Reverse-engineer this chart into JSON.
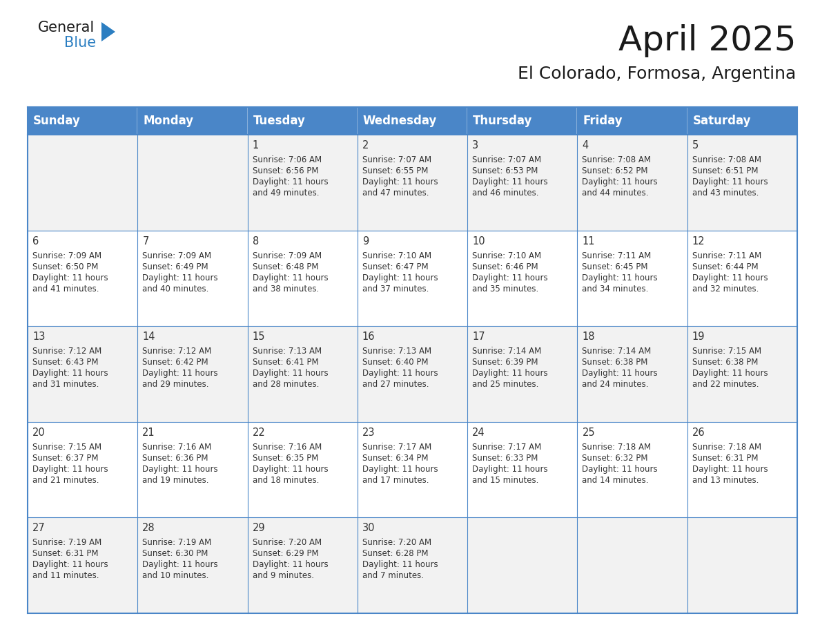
{
  "title": "April 2025",
  "subtitle": "El Colorado, Formosa, Argentina",
  "header_color": "#4a86c8",
  "header_text_color": "#ffffff",
  "cell_bg_even": "#f2f2f2",
  "cell_bg_odd": "#ffffff",
  "border_color": "#4a86c8",
  "border_color_light": "#a0b8d8",
  "day_names": [
    "Sunday",
    "Monday",
    "Tuesday",
    "Wednesday",
    "Thursday",
    "Friday",
    "Saturday"
  ],
  "weeks": [
    [
      {
        "day": "",
        "sunrise": "",
        "sunset": "",
        "daylight_h": "",
        "daylight_m": ""
      },
      {
        "day": "",
        "sunrise": "",
        "sunset": "",
        "daylight_h": "",
        "daylight_m": ""
      },
      {
        "day": "1",
        "sunrise": "7:06 AM",
        "sunset": "6:56 PM",
        "daylight_h": "11 hours",
        "daylight_m": "and 49 minutes."
      },
      {
        "day": "2",
        "sunrise": "7:07 AM",
        "sunset": "6:55 PM",
        "daylight_h": "11 hours",
        "daylight_m": "and 47 minutes."
      },
      {
        "day": "3",
        "sunrise": "7:07 AM",
        "sunset": "6:53 PM",
        "daylight_h": "11 hours",
        "daylight_m": "and 46 minutes."
      },
      {
        "day": "4",
        "sunrise": "7:08 AM",
        "sunset": "6:52 PM",
        "daylight_h": "11 hours",
        "daylight_m": "and 44 minutes."
      },
      {
        "day": "5",
        "sunrise": "7:08 AM",
        "sunset": "6:51 PM",
        "daylight_h": "11 hours",
        "daylight_m": "and 43 minutes."
      }
    ],
    [
      {
        "day": "6",
        "sunrise": "7:09 AM",
        "sunset": "6:50 PM",
        "daylight_h": "11 hours",
        "daylight_m": "and 41 minutes."
      },
      {
        "day": "7",
        "sunrise": "7:09 AM",
        "sunset": "6:49 PM",
        "daylight_h": "11 hours",
        "daylight_m": "and 40 minutes."
      },
      {
        "day": "8",
        "sunrise": "7:09 AM",
        "sunset": "6:48 PM",
        "daylight_h": "11 hours",
        "daylight_m": "and 38 minutes."
      },
      {
        "day": "9",
        "sunrise": "7:10 AM",
        "sunset": "6:47 PM",
        "daylight_h": "11 hours",
        "daylight_m": "and 37 minutes."
      },
      {
        "day": "10",
        "sunrise": "7:10 AM",
        "sunset": "6:46 PM",
        "daylight_h": "11 hours",
        "daylight_m": "and 35 minutes."
      },
      {
        "day": "11",
        "sunrise": "7:11 AM",
        "sunset": "6:45 PM",
        "daylight_h": "11 hours",
        "daylight_m": "and 34 minutes."
      },
      {
        "day": "12",
        "sunrise": "7:11 AM",
        "sunset": "6:44 PM",
        "daylight_h": "11 hours",
        "daylight_m": "and 32 minutes."
      }
    ],
    [
      {
        "day": "13",
        "sunrise": "7:12 AM",
        "sunset": "6:43 PM",
        "daylight_h": "11 hours",
        "daylight_m": "and 31 minutes."
      },
      {
        "day": "14",
        "sunrise": "7:12 AM",
        "sunset": "6:42 PM",
        "daylight_h": "11 hours",
        "daylight_m": "and 29 minutes."
      },
      {
        "day": "15",
        "sunrise": "7:13 AM",
        "sunset": "6:41 PM",
        "daylight_h": "11 hours",
        "daylight_m": "and 28 minutes."
      },
      {
        "day": "16",
        "sunrise": "7:13 AM",
        "sunset": "6:40 PM",
        "daylight_h": "11 hours",
        "daylight_m": "and 27 minutes."
      },
      {
        "day": "17",
        "sunrise": "7:14 AM",
        "sunset": "6:39 PM",
        "daylight_h": "11 hours",
        "daylight_m": "and 25 minutes."
      },
      {
        "day": "18",
        "sunrise": "7:14 AM",
        "sunset": "6:38 PM",
        "daylight_h": "11 hours",
        "daylight_m": "and 24 minutes."
      },
      {
        "day": "19",
        "sunrise": "7:15 AM",
        "sunset": "6:38 PM",
        "daylight_h": "11 hours",
        "daylight_m": "and 22 minutes."
      }
    ],
    [
      {
        "day": "20",
        "sunrise": "7:15 AM",
        "sunset": "6:37 PM",
        "daylight_h": "11 hours",
        "daylight_m": "and 21 minutes."
      },
      {
        "day": "21",
        "sunrise": "7:16 AM",
        "sunset": "6:36 PM",
        "daylight_h": "11 hours",
        "daylight_m": "and 19 minutes."
      },
      {
        "day": "22",
        "sunrise": "7:16 AM",
        "sunset": "6:35 PM",
        "daylight_h": "11 hours",
        "daylight_m": "and 18 minutes."
      },
      {
        "day": "23",
        "sunrise": "7:17 AM",
        "sunset": "6:34 PM",
        "daylight_h": "11 hours",
        "daylight_m": "and 17 minutes."
      },
      {
        "day": "24",
        "sunrise": "7:17 AM",
        "sunset": "6:33 PM",
        "daylight_h": "11 hours",
        "daylight_m": "and 15 minutes."
      },
      {
        "day": "25",
        "sunrise": "7:18 AM",
        "sunset": "6:32 PM",
        "daylight_h": "11 hours",
        "daylight_m": "and 14 minutes."
      },
      {
        "day": "26",
        "sunrise": "7:18 AM",
        "sunset": "6:31 PM",
        "daylight_h": "11 hours",
        "daylight_m": "and 13 minutes."
      }
    ],
    [
      {
        "day": "27",
        "sunrise": "7:19 AM",
        "sunset": "6:31 PM",
        "daylight_h": "11 hours",
        "daylight_m": "and 11 minutes."
      },
      {
        "day": "28",
        "sunrise": "7:19 AM",
        "sunset": "6:30 PM",
        "daylight_h": "11 hours",
        "daylight_m": "and 10 minutes."
      },
      {
        "day": "29",
        "sunrise": "7:20 AM",
        "sunset": "6:29 PM",
        "daylight_h": "11 hours",
        "daylight_m": "and 9 minutes."
      },
      {
        "day": "30",
        "sunrise": "7:20 AM",
        "sunset": "6:28 PM",
        "daylight_h": "11 hours",
        "daylight_m": "and 7 minutes."
      },
      {
        "day": "",
        "sunrise": "",
        "sunset": "",
        "daylight_h": "",
        "daylight_m": ""
      },
      {
        "day": "",
        "sunrise": "",
        "sunset": "",
        "daylight_h": "",
        "daylight_m": ""
      },
      {
        "day": "",
        "sunrise": "",
        "sunset": "",
        "daylight_h": "",
        "daylight_m": ""
      }
    ]
  ],
  "logo_general_color": "#1a1a1a",
  "logo_blue_color": "#2b7ec1",
  "title_fontsize": 36,
  "subtitle_fontsize": 18,
  "header_fontsize": 12,
  "day_num_fontsize": 10.5,
  "cell_text_fontsize": 8.5
}
